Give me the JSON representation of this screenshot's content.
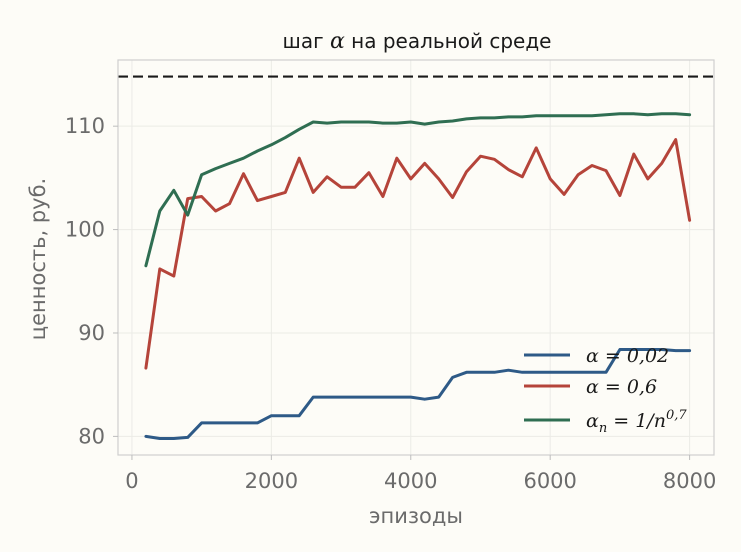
{
  "chart_data": {
    "type": "line",
    "title_prefix": "шаг ",
    "title_symbol": "α",
    "title_suffix": " на реальной среде",
    "xlabel": "эпизоды",
    "ylabel": "ценность, руб.",
    "xlim": [
      -200,
      8350
    ],
    "ylim": [
      78.2,
      116.4
    ],
    "xticks": [
      0,
      2000,
      4000,
      6000,
      8000
    ],
    "xtick_labels": [
      "0",
      "2000",
      "4000",
      "6000",
      "8000"
    ],
    "yticks": [
      80,
      90,
      100,
      110
    ],
    "ytick_labels": [
      "80",
      "90",
      "100",
      "110"
    ],
    "grid": true,
    "legend_position": "lower-right",
    "reference_line": {
      "y": 114.8,
      "style": "dashed",
      "color": "#1a1a1a"
    },
    "x": [
      200,
      400,
      600,
      800,
      1000,
      1200,
      1400,
      1600,
      1800,
      2000,
      2200,
      2400,
      2600,
      2800,
      3000,
      3200,
      3400,
      3600,
      3800,
      4000,
      4200,
      4400,
      4600,
      4800,
      5000,
      5200,
      5400,
      5600,
      5800,
      6000,
      6200,
      6400,
      6600,
      6800,
      7000,
      7200,
      7400,
      7600,
      7800,
      8000
    ],
    "series": [
      {
        "name": "α = 0,02",
        "color": "#2e5a87",
        "values": [
          80.0,
          79.8,
          79.8,
          79.9,
          81.3,
          81.3,
          81.3,
          81.3,
          81.3,
          82.0,
          82.0,
          82.0,
          83.8,
          83.8,
          83.8,
          83.8,
          83.8,
          83.8,
          83.8,
          83.8,
          83.6,
          83.8,
          85.7,
          86.2,
          86.2,
          86.2,
          86.4,
          86.2,
          86.2,
          86.2,
          86.2,
          86.2,
          86.2,
          86.2,
          88.4,
          88.4,
          88.4,
          88.4,
          88.3,
          88.3
        ]
      },
      {
        "name": "α = 0,6",
        "color": "#b5443a",
        "values": [
          86.6,
          96.2,
          95.5,
          103.0,
          103.2,
          101.8,
          102.5,
          105.4,
          102.8,
          103.2,
          103.6,
          106.9,
          103.6,
          105.1,
          104.1,
          104.1,
          105.5,
          103.2,
          106.9,
          104.9,
          106.4,
          104.9,
          103.1,
          105.6,
          107.1,
          106.8,
          105.8,
          105.1,
          107.9,
          104.9,
          103.4,
          105.3,
          106.2,
          105.7,
          103.3,
          107.3,
          104.9,
          106.4,
          108.7,
          100.9
        ]
      },
      {
        "name": "α_n = 1/n^0,7",
        "color": "#2f6e52",
        "values": [
          96.5,
          101.8,
          103.8,
          101.4,
          105.3,
          105.9,
          106.4,
          106.9,
          107.6,
          108.2,
          108.9,
          109.7,
          110.4,
          110.3,
          110.4,
          110.4,
          110.4,
          110.3,
          110.3,
          110.4,
          110.2,
          110.4,
          110.5,
          110.7,
          110.8,
          110.8,
          110.9,
          110.9,
          111.0,
          111.0,
          111.0,
          111.0,
          111.0,
          111.1,
          111.2,
          111.2,
          111.1,
          111.2,
          111.2,
          111.1
        ]
      }
    ],
    "legend": [
      {
        "prefix": "α",
        "sub": "",
        "mid": " = 0,02",
        "sup": ""
      },
      {
        "prefix": "α",
        "sub": "",
        "mid": " = 0,6",
        "sup": ""
      },
      {
        "prefix": "α",
        "sub": "n",
        "mid": " = 1/n",
        "sup": "0,7"
      }
    ]
  }
}
